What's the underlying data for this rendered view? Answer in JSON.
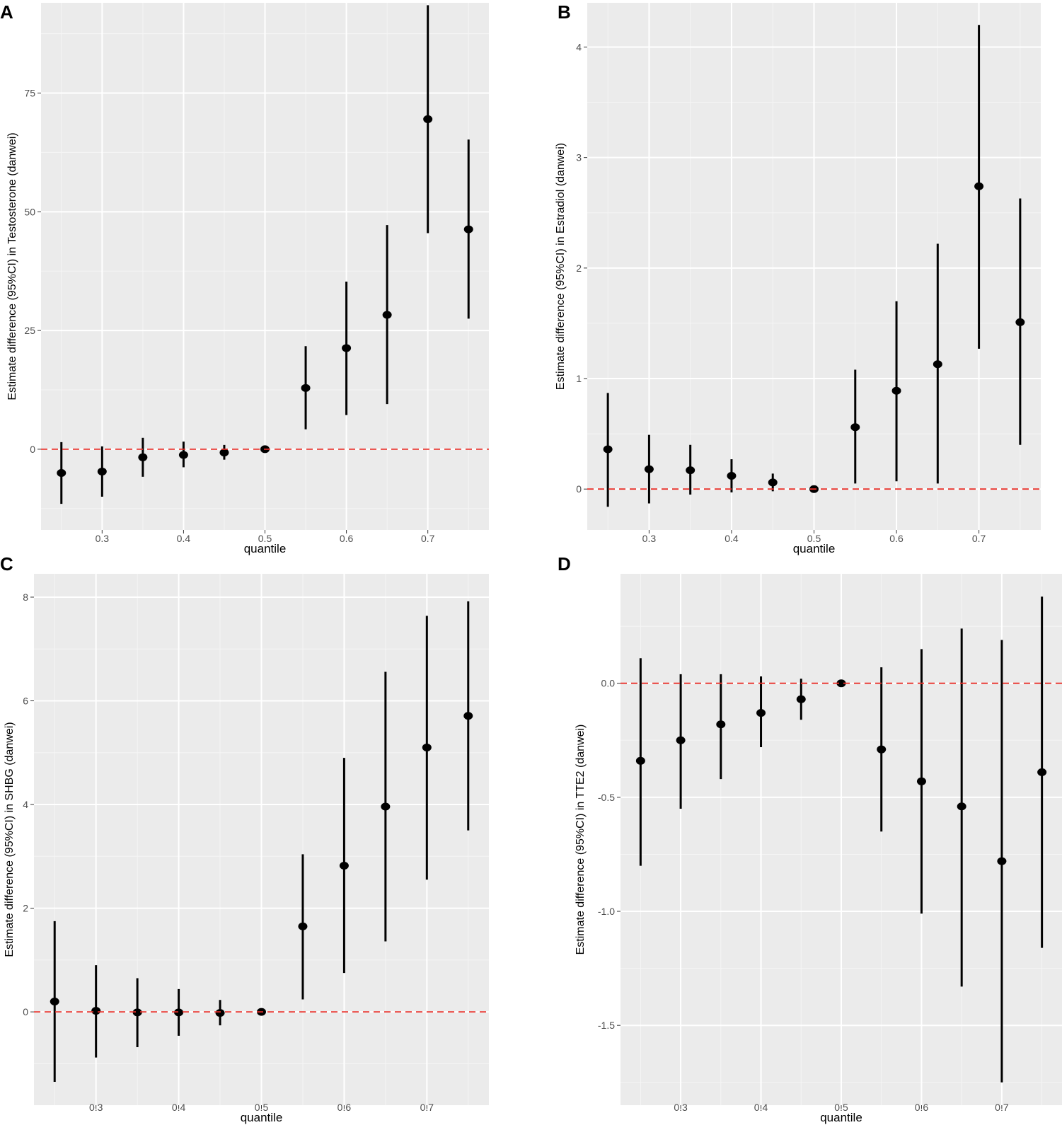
{
  "colors": {
    "panel_bg": "#ebebeb",
    "grid_major": "#ffffff",
    "grid_minor": "#f5f5f5",
    "point": "#000000",
    "refline": "#e8302a",
    "tick_text": "#4d4d4d"
  },
  "chart_data": [
    {
      "type": "errorbar",
      "panel_label": "A",
      "title": "",
      "xlabel": "quantile",
      "ylabel": "Estimate difference (95%CI) in Testosterone (danwei)",
      "xlim": [
        0.225,
        0.775
      ],
      "ylim": [
        -17,
        94
      ],
      "x_ticks": [
        0.3,
        0.4,
        0.5,
        0.6,
        0.7
      ],
      "x_tick_labels": [
        "0.3",
        "0.4",
        "0.5",
        "0.6",
        "0.7"
      ],
      "y_ticks": [
        0,
        25,
        50,
        75
      ],
      "y_tick_labels": [
        "0",
        "25",
        "50",
        "75"
      ],
      "reference_line": 0,
      "x": [
        0.25,
        0.3,
        0.35,
        0.4,
        0.45,
        0.5,
        0.55,
        0.6,
        0.65,
        0.7,
        0.75
      ],
      "estimate": [
        -5.0,
        -4.7,
        -1.7,
        -1.2,
        -0.7,
        0.0,
        12.9,
        21.3,
        28.3,
        69.5,
        46.3
      ],
      "lower": [
        -11.5,
        -10.0,
        -5.8,
        -3.8,
        -2.2,
        0.0,
        4.2,
        7.2,
        9.5,
        45.5,
        27.5
      ],
      "upper": [
        1.5,
        0.6,
        2.4,
        1.6,
        0.9,
        0.0,
        21.7,
        35.3,
        47.2,
        93.5,
        65.2
      ]
    },
    {
      "type": "errorbar",
      "panel_label": "B",
      "title": "",
      "xlabel": "quantile",
      "ylabel": "Estimate difference (95%CI) in Estradiol (danwei)",
      "xlim": [
        0.225,
        0.775
      ],
      "ylim": [
        -0.37,
        4.4
      ],
      "x_ticks": [
        0.3,
        0.4,
        0.5,
        0.6,
        0.7
      ],
      "x_tick_labels": [
        "0.3",
        "0.4",
        "0.5",
        "0.6",
        "0.7"
      ],
      "y_ticks": [
        0,
        1,
        2,
        3,
        4
      ],
      "y_tick_labels": [
        "0",
        "1",
        "2",
        "3",
        "4"
      ],
      "reference_line": 0,
      "x": [
        0.25,
        0.3,
        0.35,
        0.4,
        0.45,
        0.5,
        0.55,
        0.6,
        0.65,
        0.7,
        0.75
      ],
      "estimate": [
        0.36,
        0.18,
        0.17,
        0.12,
        0.06,
        0.0,
        0.56,
        0.89,
        1.13,
        2.74,
        1.51
      ],
      "lower": [
        -0.16,
        -0.13,
        -0.05,
        -0.03,
        -0.02,
        0.0,
        0.05,
        0.07,
        0.05,
        1.27,
        0.4
      ],
      "upper": [
        0.87,
        0.49,
        0.4,
        0.27,
        0.14,
        0.0,
        1.08,
        1.7,
        2.22,
        4.2,
        2.63
      ]
    },
    {
      "type": "errorbar",
      "panel_label": "C",
      "title": "",
      "xlabel": "quantile",
      "ylabel": "Estimate difference (95%CI) in SHBG (danwei)",
      "xlim": [
        0.225,
        0.775
      ],
      "ylim": [
        -1.8,
        8.45
      ],
      "x_ticks": [
        0.3,
        0.4,
        0.5,
        0.6,
        0.7
      ],
      "x_tick_labels": [
        "0.3",
        "0.4",
        "0.5",
        "0.6",
        "0.7"
      ],
      "y_ticks": [
        0,
        2,
        4,
        6,
        8
      ],
      "y_tick_labels": [
        "0",
        "2",
        "4",
        "6",
        "8"
      ],
      "reference_line": 0,
      "x": [
        0.25,
        0.3,
        0.35,
        0.4,
        0.45,
        0.5,
        0.55,
        0.6,
        0.65,
        0.7,
        0.75
      ],
      "estimate": [
        0.2,
        0.02,
        -0.01,
        -0.01,
        -0.02,
        0.0,
        1.65,
        2.82,
        3.96,
        5.1,
        5.71
      ],
      "lower": [
        -1.35,
        -0.88,
        -0.68,
        -0.46,
        -0.26,
        0.0,
        0.24,
        0.75,
        1.36,
        2.55,
        3.5
      ],
      "upper": [
        1.75,
        0.9,
        0.65,
        0.44,
        0.23,
        0.0,
        3.04,
        4.9,
        6.56,
        7.64,
        7.92
      ]
    },
    {
      "type": "errorbar",
      "panel_label": "D",
      "title": "",
      "xlabel": "quantile",
      "ylabel": "Estimate difference (95%CI) in TTE2 (danwei)",
      "xlim": [
        0.225,
        0.775
      ],
      "ylim": [
        -1.85,
        0.48
      ],
      "x_ticks": [
        0.3,
        0.4,
        0.5,
        0.6,
        0.7
      ],
      "x_tick_labels": [
        "0.3",
        "0.4",
        "0.5",
        "0.6",
        "0.7"
      ],
      "y_ticks": [
        -1.5,
        -1.0,
        -0.5,
        0.0
      ],
      "y_tick_labels": [
        "-1.5",
        "-1.0",
        "-0.5",
        "0.0"
      ],
      "reference_line": 0,
      "x": [
        0.25,
        0.3,
        0.35,
        0.4,
        0.45,
        0.5,
        0.55,
        0.6,
        0.65,
        0.7,
        0.75
      ],
      "estimate": [
        -0.34,
        -0.25,
        -0.18,
        -0.13,
        -0.07,
        0.0,
        -0.29,
        -0.43,
        -0.54,
        -0.78,
        -0.39
      ],
      "lower": [
        -0.8,
        -0.55,
        -0.42,
        -0.28,
        -0.16,
        0.0,
        -0.65,
        -1.01,
        -1.33,
        -1.75,
        -1.16
      ],
      "upper": [
        0.11,
        0.04,
        0.04,
        0.03,
        0.02,
        0.0,
        0.07,
        0.15,
        0.24,
        0.19,
        0.38
      ]
    }
  ]
}
